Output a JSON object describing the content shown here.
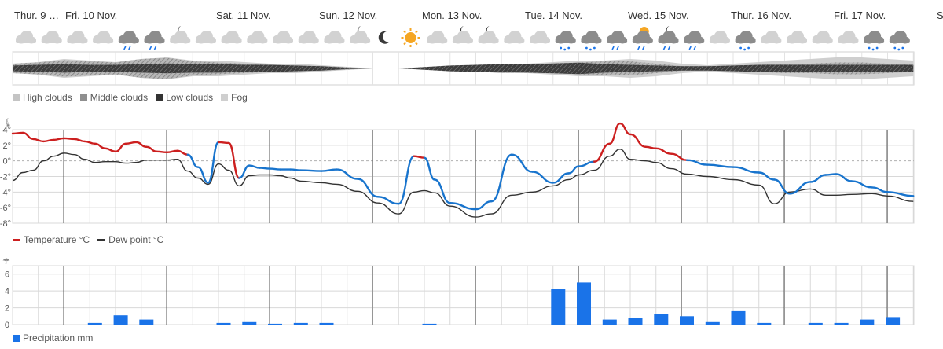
{
  "days": [
    "Thur. 9 …",
    "Fri. 10 Nov.",
    "Sat. 11 Nov.",
    "Sun. 12 Nov.",
    "Mon. 13 Nov.",
    "Tue. 14 Nov.",
    "Wed. 15 Nov.",
    "Thur. 16 Nov.",
    "Fri. 17 Nov.",
    "Sa…"
  ],
  "weather_icons": [
    "cloudy",
    "cloudy",
    "cloudy",
    "cloudy",
    "rain-cloud",
    "rain-cloud",
    "night-partly-cloudy",
    "cloudy",
    "cloudy",
    "cloudy",
    "cloudy",
    "cloudy",
    "cloudy",
    "night-partly-cloudy",
    "moon",
    "sun",
    "cloudy",
    "night-partly-cloudy",
    "night-partly-cloudy",
    "cloudy",
    "cloudy",
    "snow-cloud",
    "snow-cloud",
    "rain-cloud",
    "sun-rain-cloud",
    "night-rain-cloud",
    "rain-cloud",
    "cloudy",
    "snow-cloud",
    "cloudy",
    "cloudy",
    "cloudy",
    "cloudy",
    "snow-cloud",
    "snow-cloud"
  ],
  "cloud_legend": {
    "high": "High clouds",
    "middle": "Middle clouds",
    "low": "Low clouds",
    "fog": "Fog"
  },
  "colors": {
    "temp_warm": "#cc1f1f",
    "temp_cold": "#1874cd",
    "dew": "#333333",
    "precip": "#1a73e8",
    "grid": "#d8d8d8",
    "day_line": "#555555"
  },
  "chart_data": [
    {
      "type": "area",
      "title": "Cloud cover",
      "x": [
        0,
        1,
        2,
        3,
        4,
        5,
        6,
        7,
        8,
        9,
        10,
        11,
        12,
        13,
        14,
        15,
        16,
        17,
        18,
        19,
        20,
        21,
        22,
        23,
        24,
        25,
        26,
        27,
        28,
        29,
        30,
        31,
        32,
        33,
        34,
        35
      ],
      "series": [
        {
          "name": "High clouds",
          "values": [
            0.3,
            0.4,
            0.6,
            0.5,
            0.4,
            0.6,
            0.7,
            0.5,
            0.5,
            0.4,
            0.3,
            0.3,
            0.2,
            0.1,
            0,
            0,
            0,
            0,
            0.1,
            0.2,
            0.3,
            0.4,
            0.5,
            0.5,
            0.6,
            0.5,
            0.3,
            0.2,
            0.3,
            0.4,
            0.5,
            0.6,
            0.7,
            0.7,
            0.6,
            0.5
          ]
        },
        {
          "name": "Middle clouds",
          "values": [
            0.4,
            0.5,
            0.7,
            0.6,
            0.5,
            0.8,
            0.9,
            0.6,
            0.5,
            0.4,
            0.3,
            0.2,
            0.2,
            0.1,
            0,
            0,
            0,
            0,
            0.1,
            0.2,
            0.3,
            0.4,
            0.5,
            0.6,
            0.6,
            0.4,
            0.2,
            0.2,
            0.2,
            0.3,
            0.4,
            0.4,
            0.5,
            0.5,
            0.4,
            0.3
          ]
        },
        {
          "name": "Low clouds",
          "values": [
            0.4,
            0.5,
            0.6,
            0.5,
            0.5,
            0.6,
            0.7,
            0.6,
            0.6,
            0.5,
            0.5,
            0.4,
            0.3,
            0.1,
            0,
            0,
            0.2,
            0.4,
            0.5,
            0.6,
            0.6,
            0.7,
            0.8,
            0.6,
            0.5,
            0.4,
            0.3,
            0.3,
            0.4,
            0.5,
            0.5,
            0.5,
            0.5,
            0.5,
            0.5,
            0.5
          ]
        },
        {
          "name": "Fog",
          "values": [
            0,
            0,
            0,
            0,
            0,
            0,
            0,
            0,
            0,
            0,
            0,
            0,
            0,
            0,
            0,
            0,
            0,
            0,
            0,
            0,
            0,
            0,
            0,
            0,
            0,
            0,
            0,
            0,
            0,
            0,
            0,
            0,
            0,
            0,
            0,
            0
          ]
        }
      ]
    },
    {
      "type": "line",
      "ylabel": "",
      "yticks": [
        "4°",
        "2°",
        "0°",
        "-2°",
        "-4°",
        "-6°",
        "-8°"
      ],
      "ylim": [
        -8,
        4
      ],
      "xlim": [
        0,
        35
      ],
      "series": [
        {
          "name": "Temperature °C",
          "x": [
            0,
            0.4,
            0.8,
            1.2,
            1.6,
            2,
            2.4,
            2.8,
            3.2,
            3.6,
            4,
            4.4,
            4.8,
            5.2,
            5.6,
            6,
            6.4,
            6.8,
            7.2,
            7.6,
            8,
            8.4,
            8.8,
            9.2,
            9.6,
            10,
            10.4,
            10.8,
            11.2,
            12,
            12.6,
            13.4,
            14.2,
            15,
            15.6,
            16,
            16.4,
            17,
            18,
            18.6,
            19.4,
            20.2,
            21,
            21.6,
            22,
            22.6,
            23.2,
            23.6,
            24,
            24.6,
            25,
            25.6,
            26.2,
            27,
            28,
            29,
            29.6,
            30.2,
            31,
            31.6,
            32,
            32.6,
            33.4,
            34,
            35
          ],
          "values": [
            3.5,
            3.6,
            2.8,
            2.5,
            2.7,
            2.9,
            2.8,
            2.5,
            2.2,
            1.6,
            1.2,
            2.2,
            2.4,
            1.8,
            1.2,
            1.1,
            1.3,
            0.8,
            -0.8,
            -2.8,
            2.4,
            2.3,
            -2.2,
            -0.6,
            -0.9,
            -1,
            -1.1,
            -1.1,
            -1.2,
            -1.3,
            -1.1,
            -2.3,
            -4.6,
            -5.5,
            0.6,
            0.4,
            -2.4,
            -5.4,
            -6.2,
            -5.2,
            0.8,
            -1.4,
            -2.8,
            -1.6,
            -0.7,
            -0.1,
            2.2,
            4.8,
            3.4,
            1.8,
            1.6,
            0.9,
            0.1,
            -0.5,
            -0.8,
            -1.5,
            -2.4,
            -4.2,
            -2.7,
            -1.8,
            -1.7,
            -2.6,
            -3.4,
            -4,
            -4.5
          ]
        },
        {
          "name": "Dew point °C",
          "x": [
            0,
            0.4,
            0.8,
            1.2,
            1.6,
            2,
            2.4,
            2.8,
            3.2,
            3.6,
            4,
            4.4,
            4.8,
            5.2,
            5.6,
            6,
            6.4,
            6.8,
            7.2,
            7.6,
            8,
            8.4,
            8.8,
            9.2,
            9.6,
            10,
            10.4,
            10.8,
            11.2,
            12,
            12.6,
            13.4,
            14.2,
            15,
            15.6,
            16,
            16.4,
            17,
            18,
            18.6,
            19.4,
            20.2,
            21,
            21.6,
            22,
            22.6,
            23.2,
            23.6,
            24,
            24.6,
            25,
            25.6,
            26.2,
            27,
            28,
            29,
            29.6,
            30.2,
            31,
            31.6,
            32,
            32.6,
            33.4,
            34,
            35
          ],
          "values": [
            -2.5,
            -1.5,
            -1.2,
            0,
            0.6,
            1,
            0.8,
            0.2,
            -0.2,
            -0.1,
            -0.1,
            -0.3,
            -0.2,
            0.1,
            0.1,
            0.1,
            0.2,
            -1.3,
            -2.2,
            -3,
            -0.4,
            -1.2,
            -3.2,
            -1.9,
            -1.8,
            -1.8,
            -1.9,
            -2.2,
            -2.6,
            -2.8,
            -3,
            -3.9,
            -5.4,
            -6.8,
            -4,
            -3.8,
            -4.1,
            -5.8,
            -7.2,
            -6.8,
            -4.4,
            -4,
            -3.2,
            -2.4,
            -1.8,
            -1.2,
            0.6,
            1.5,
            0.2,
            0,
            -0.2,
            -1,
            -1.7,
            -2,
            -2.4,
            -3.1,
            -5.5,
            -4,
            -3.6,
            -4.4,
            -4.4,
            -4.3,
            -4.2,
            -4.5,
            -5.2
          ]
        }
      ]
    },
    {
      "type": "bar",
      "yticks": [
        "6",
        "4",
        "2",
        "0"
      ],
      "ylim": [
        0,
        7
      ],
      "series": [
        {
          "name": "Precipitation mm",
          "x": [
            3.2,
            4.2,
            5.2,
            8.2,
            9.2,
            10.2,
            11.2,
            12.2,
            16.2,
            21.2,
            22.2,
            23.2,
            24.2,
            25.2,
            26.2,
            27.2,
            28.2,
            29.2,
            31.2,
            32.2,
            33.2,
            34.2
          ],
          "values": [
            0.2,
            1.1,
            0.6,
            0.2,
            0.3,
            0.1,
            0.2,
            0.2,
            0.1,
            4.2,
            5.0,
            0.6,
            0.8,
            1.3,
            1.0,
            0.3,
            1.6,
            0.2,
            0.2,
            0.2,
            0.6,
            0.9
          ]
        }
      ]
    }
  ],
  "temp_legend": {
    "temperature": "Temperature °C",
    "dew": "Dew point °C"
  },
  "precip_legend": {
    "precipitation": "Precipitation mm"
  }
}
